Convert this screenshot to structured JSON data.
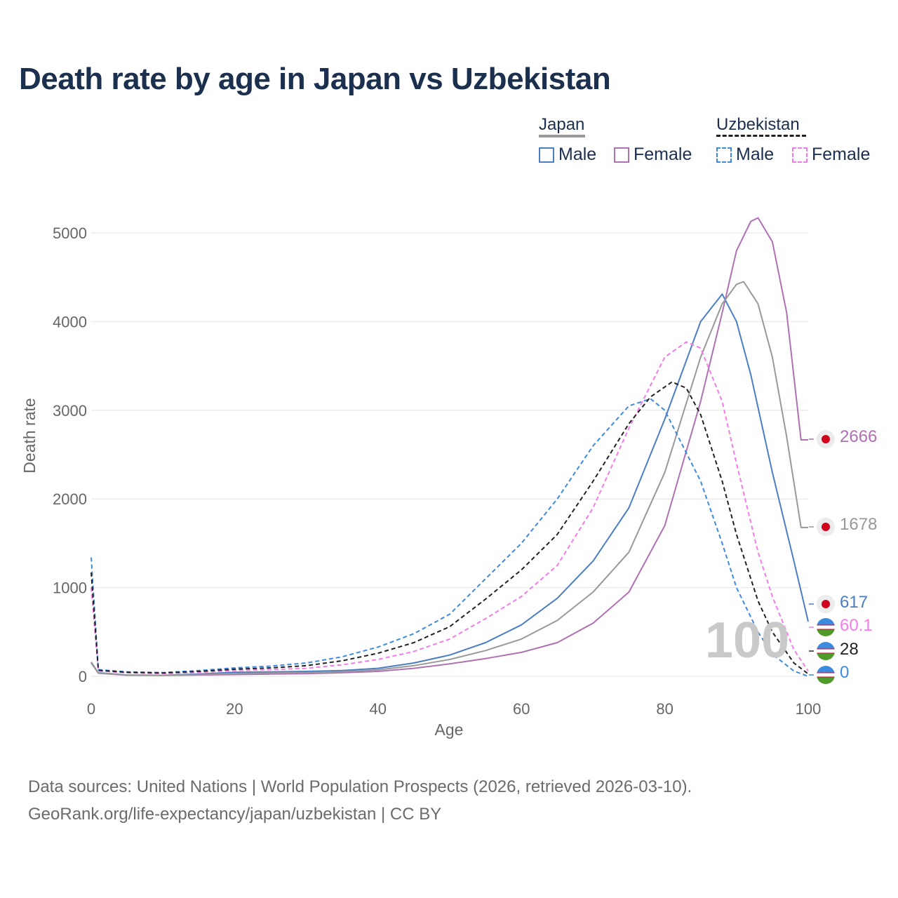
{
  "title": "Death rate by age in Japan vs Uzbekistan",
  "legend": {
    "groups": [
      {
        "name": "Japan",
        "items": [
          "Male",
          "Female"
        ]
      },
      {
        "name": "Uzbekistan",
        "items": [
          "Male",
          "Female"
        ]
      }
    ]
  },
  "colors": {
    "japan_male": "#4a7ec4",
    "japan_female": "#b070b4",
    "japan_total": "#999999",
    "uzbekistan_male": "#3d8be0",
    "uzbekistan_female": "#f47bea",
    "uzbekistan_total": "#222222",
    "grid": "#e6e6e6"
  },
  "chart_data": {
    "type": "line",
    "title": "Death rate by age in Japan vs Uzbekistan",
    "xlabel": "Age",
    "ylabel": "Death rate",
    "xlim": [
      0,
      100
    ],
    "ylim": [
      0,
      5000
    ],
    "xticks": [
      "0",
      "20",
      "40",
      "60",
      "80",
      "100"
    ],
    "yticks": [
      "0",
      "1000",
      "2000",
      "3000",
      "4000",
      "5000"
    ],
    "grid": true,
    "legend_position": "top-right",
    "series": [
      {
        "name": "Japan Male",
        "country": "Japan",
        "sex": "Male",
        "style": "solid",
        "color_key": "japan_male",
        "x": [
          0,
          1,
          5,
          10,
          15,
          20,
          25,
          30,
          35,
          40,
          45,
          50,
          55,
          60,
          65,
          70,
          75,
          80,
          85,
          88,
          90,
          92,
          95,
          98,
          100
        ],
        "y": [
          160,
          40,
          15,
          12,
          25,
          45,
          50,
          55,
          65,
          90,
          150,
          240,
          380,
          580,
          880,
          1300,
          1900,
          2900,
          4000,
          4310,
          4000,
          3400,
          2300,
          1300,
          617
        ]
      },
      {
        "name": "Japan Female",
        "country": "Japan",
        "sex": "Female",
        "style": "solid",
        "color_key": "japan_female",
        "x": [
          0,
          1,
          5,
          10,
          15,
          20,
          25,
          30,
          35,
          40,
          45,
          50,
          55,
          60,
          65,
          70,
          75,
          80,
          85,
          88,
          90,
          92,
          93,
          95,
          97,
          99,
          100
        ],
        "y": [
          150,
          35,
          12,
          10,
          15,
          20,
          25,
          30,
          40,
          55,
          90,
          140,
          200,
          270,
          380,
          600,
          950,
          1700,
          3100,
          4100,
          4800,
          5130,
          5170,
          4900,
          4100,
          2666,
          2666
        ]
      },
      {
        "name": "Japan",
        "country": "Japan",
        "sex": "Total",
        "style": "solid",
        "color_key": "japan_total",
        "x": [
          0,
          1,
          5,
          10,
          15,
          20,
          25,
          30,
          35,
          40,
          45,
          50,
          55,
          60,
          65,
          70,
          75,
          80,
          85,
          88,
          90,
          91,
          93,
          95,
          97,
          99,
          100
        ],
        "y": [
          155,
          38,
          14,
          11,
          20,
          32,
          38,
          42,
          52,
          72,
          120,
          190,
          290,
          420,
          630,
          950,
          1400,
          2300,
          3600,
          4200,
          4420,
          4450,
          4200,
          3600,
          2700,
          1678,
          1678
        ]
      },
      {
        "name": "Uzbekistan Male",
        "country": "Uzbekistan",
        "sex": "Male",
        "style": "dashed",
        "color_key": "uzbekistan_male",
        "x": [
          0,
          1,
          5,
          10,
          15,
          20,
          25,
          30,
          35,
          40,
          45,
          50,
          55,
          60,
          65,
          70,
          75,
          78,
          80,
          85,
          88,
          90,
          93,
          95,
          98,
          100
        ],
        "y": [
          1340,
          75,
          50,
          42,
          65,
          95,
          115,
          150,
          220,
          330,
          480,
          700,
          1100,
          1500,
          2000,
          2600,
          3050,
          3130,
          3000,
          2200,
          1500,
          1000,
          500,
          250,
          60,
          0
        ]
      },
      {
        "name": "Uzbekistan Female",
        "country": "Uzbekistan",
        "sex": "Female",
        "style": "dashed",
        "color_key": "uzbekistan_female",
        "x": [
          0,
          1,
          5,
          10,
          15,
          20,
          25,
          30,
          35,
          40,
          45,
          50,
          55,
          60,
          65,
          70,
          75,
          80,
          83,
          85,
          88,
          90,
          93,
          95,
          98,
          100
        ],
        "y": [
          1000,
          60,
          40,
          32,
          45,
          65,
          75,
          90,
          130,
          190,
          280,
          420,
          650,
          900,
          1250,
          1900,
          2800,
          3600,
          3770,
          3700,
          3100,
          2400,
          1400,
          900,
          300,
          60.1
        ]
      },
      {
        "name": "Uzbekistan",
        "country": "Uzbekistan",
        "sex": "Total",
        "style": "dashed",
        "color_key": "uzbekistan_total",
        "x": [
          0,
          1,
          5,
          10,
          15,
          20,
          25,
          30,
          35,
          40,
          45,
          50,
          55,
          60,
          65,
          70,
          75,
          78,
          81,
          83,
          85,
          88,
          90,
          93,
          95,
          98,
          100
        ],
        "y": [
          1170,
          68,
          45,
          37,
          55,
          80,
          95,
          120,
          175,
          260,
          380,
          560,
          870,
          1200,
          1600,
          2200,
          2850,
          3150,
          3320,
          3250,
          2950,
          2200,
          1600,
          850,
          500,
          150,
          28
        ]
      }
    ],
    "end_labels": [
      {
        "series": "Japan Female",
        "text": "2666",
        "value": 2666
      },
      {
        "series": "Japan",
        "text": "1678",
        "value": 1678
      },
      {
        "series": "Japan Male",
        "text": "617",
        "value": 617
      },
      {
        "series": "Uzbekistan Female",
        "text": "60.1",
        "value": 60.1
      },
      {
        "series": "Uzbekistan",
        "text": "28",
        "value": 28
      },
      {
        "series": "Uzbekistan Male",
        "text": "0",
        "value": 0
      }
    ],
    "highlight_age": "100"
  },
  "footer": {
    "sources": "Data sources: United Nations | World Population Prospects (2026, retrieved 2026-03-10).",
    "credit": "GeoRank.org/life-expectancy/japan/uzbekistan | CC BY"
  }
}
